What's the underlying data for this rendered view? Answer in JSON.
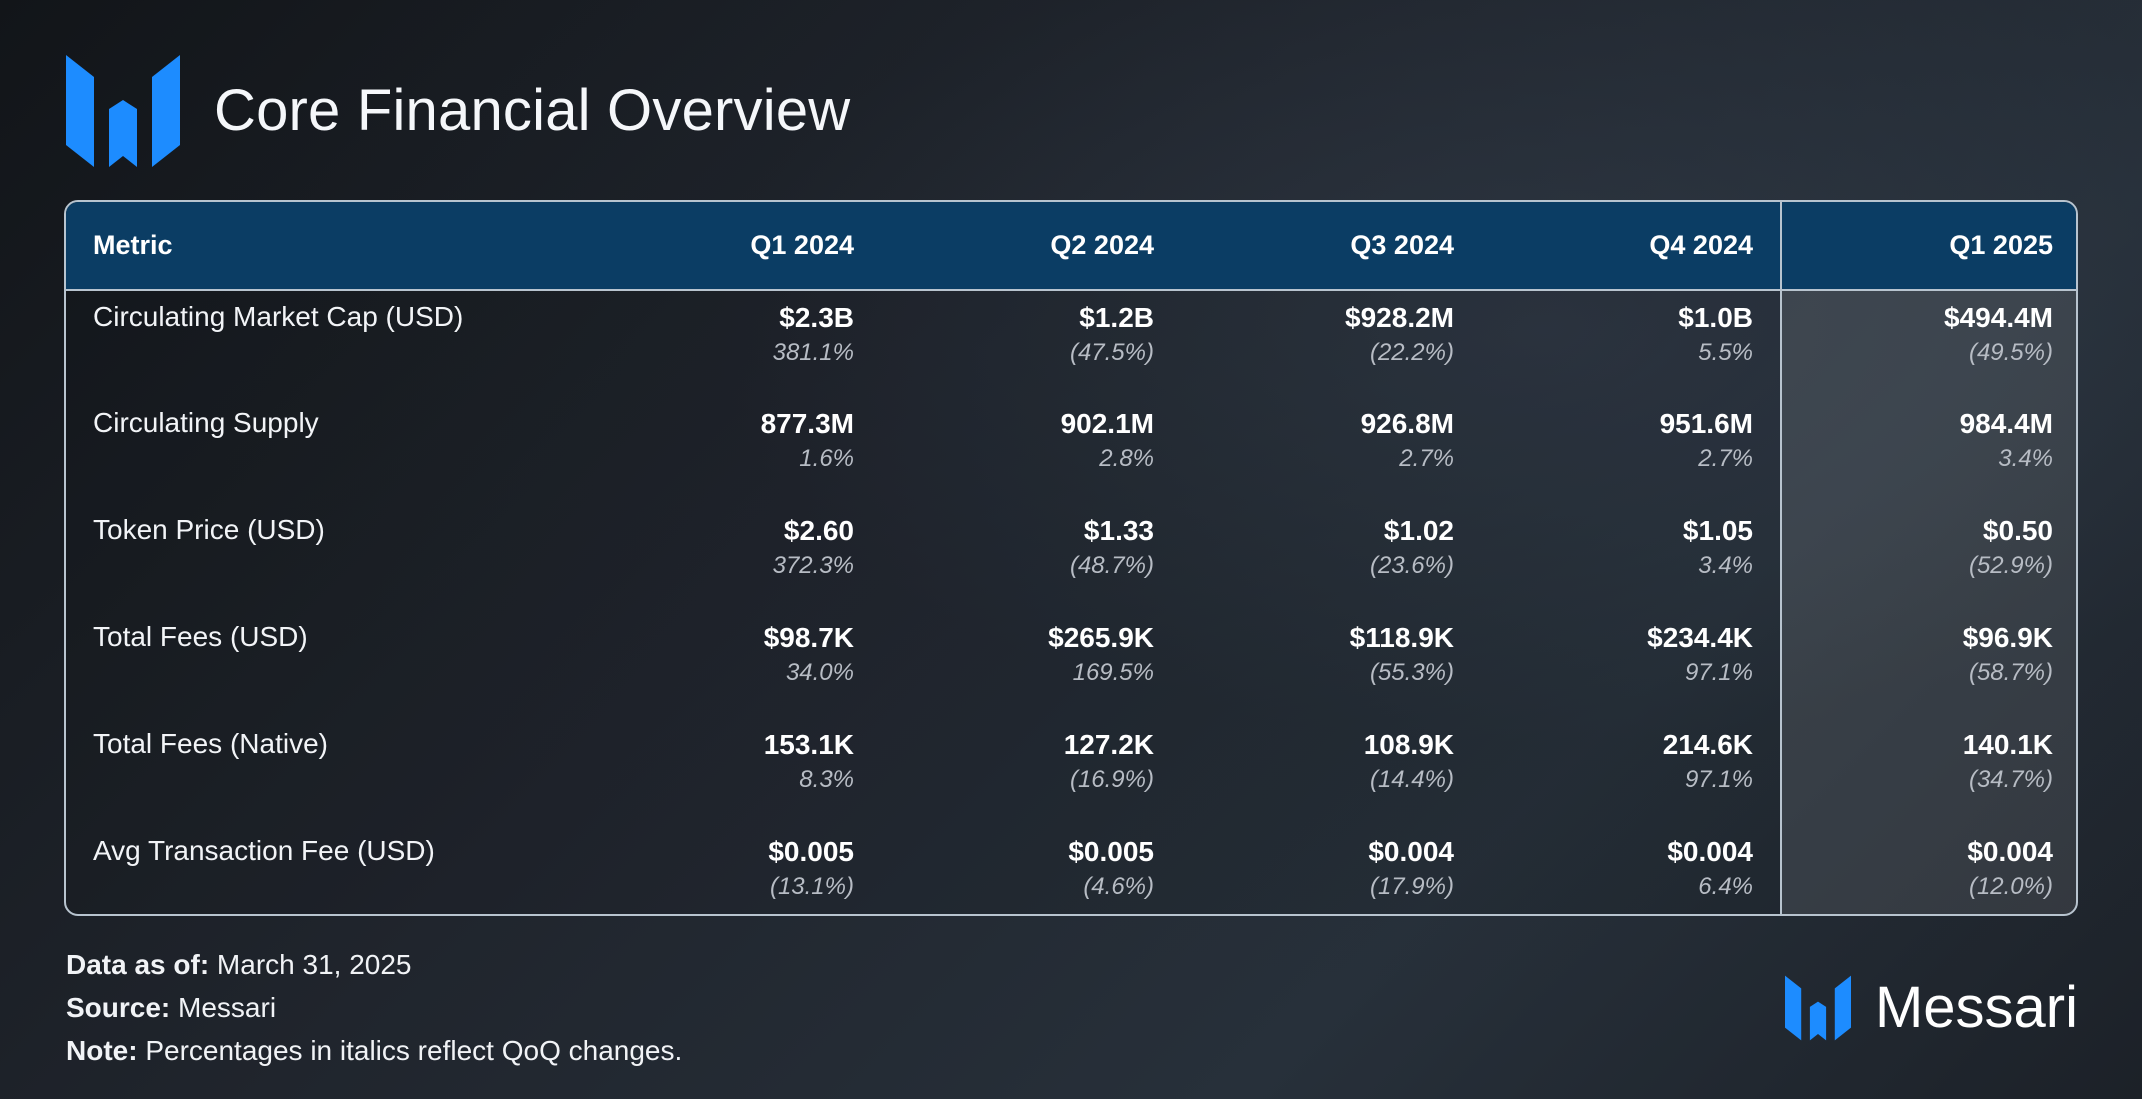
{
  "page": {
    "title": "Core Financial Overview",
    "brand_name": "Messari",
    "logo_icon": "messari-logo-icon",
    "colors": {
      "accent": "#1d8cff",
      "header": "#0b3d64",
      "border": "#b8c4cf"
    }
  },
  "chart_data": {
    "type": "table",
    "title": "Core Financial Overview",
    "columns": [
      "Metric",
      "Q1 2024",
      "Q2 2024",
      "Q3 2024",
      "Q4 2024",
      "Q1 2025"
    ],
    "rows": [
      {
        "metric": "Circulating Market Cap (USD)",
        "values": [
          "$2.3B",
          "$1.2B",
          "$928.2M",
          "$1.0B",
          "$494.4M"
        ],
        "changes": [
          "381.1%",
          "(47.5%)",
          "(22.2%)",
          "5.5%",
          "(49.5%)"
        ]
      },
      {
        "metric": "Circulating Supply",
        "values": [
          "877.3M",
          "902.1M",
          "926.8M",
          "951.6M",
          "984.4M"
        ],
        "changes": [
          "1.6%",
          "2.8%",
          "2.7%",
          "2.7%",
          "3.4%"
        ]
      },
      {
        "metric": "Token Price (USD)",
        "values": [
          "$2.60",
          "$1.33",
          "$1.02",
          "$1.05",
          "$0.50"
        ],
        "changes": [
          "372.3%",
          "(48.7%)",
          "(23.6%)",
          "3.4%",
          "(52.9%)"
        ]
      },
      {
        "metric": "Total Fees (USD)",
        "values": [
          "$98.7K",
          "$265.9K",
          "$118.9K",
          "$234.4K",
          "$96.9K"
        ],
        "changes": [
          "34.0%",
          "169.5%",
          "(55.3%)",
          "97.1%",
          "(58.7%)"
        ]
      },
      {
        "metric": "Total Fees (Native)",
        "values": [
          "153.1K",
          "127.2K",
          "108.9K",
          "214.6K",
          "140.1K"
        ],
        "changes": [
          "8.3%",
          "(16.9%)",
          "(14.4%)",
          "97.1%",
          "(34.7%)"
        ]
      },
      {
        "metric": "Avg Transaction Fee (USD)",
        "values": [
          "$0.005",
          "$0.005",
          "$0.004",
          "$0.004",
          "$0.004"
        ],
        "changes": [
          "(13.1%)",
          "(4.6%)",
          "(17.9%)",
          "6.4%",
          "(12.0%)"
        ]
      }
    ]
  },
  "footer": {
    "data_as_of_label": "Data as of:",
    "data_as_of_value": " March 31, 2025",
    "source_label": "Source:",
    "source_value": " Messari",
    "note_label": "Note:",
    "note_value": " Percentages in italics reflect QoQ changes."
  }
}
